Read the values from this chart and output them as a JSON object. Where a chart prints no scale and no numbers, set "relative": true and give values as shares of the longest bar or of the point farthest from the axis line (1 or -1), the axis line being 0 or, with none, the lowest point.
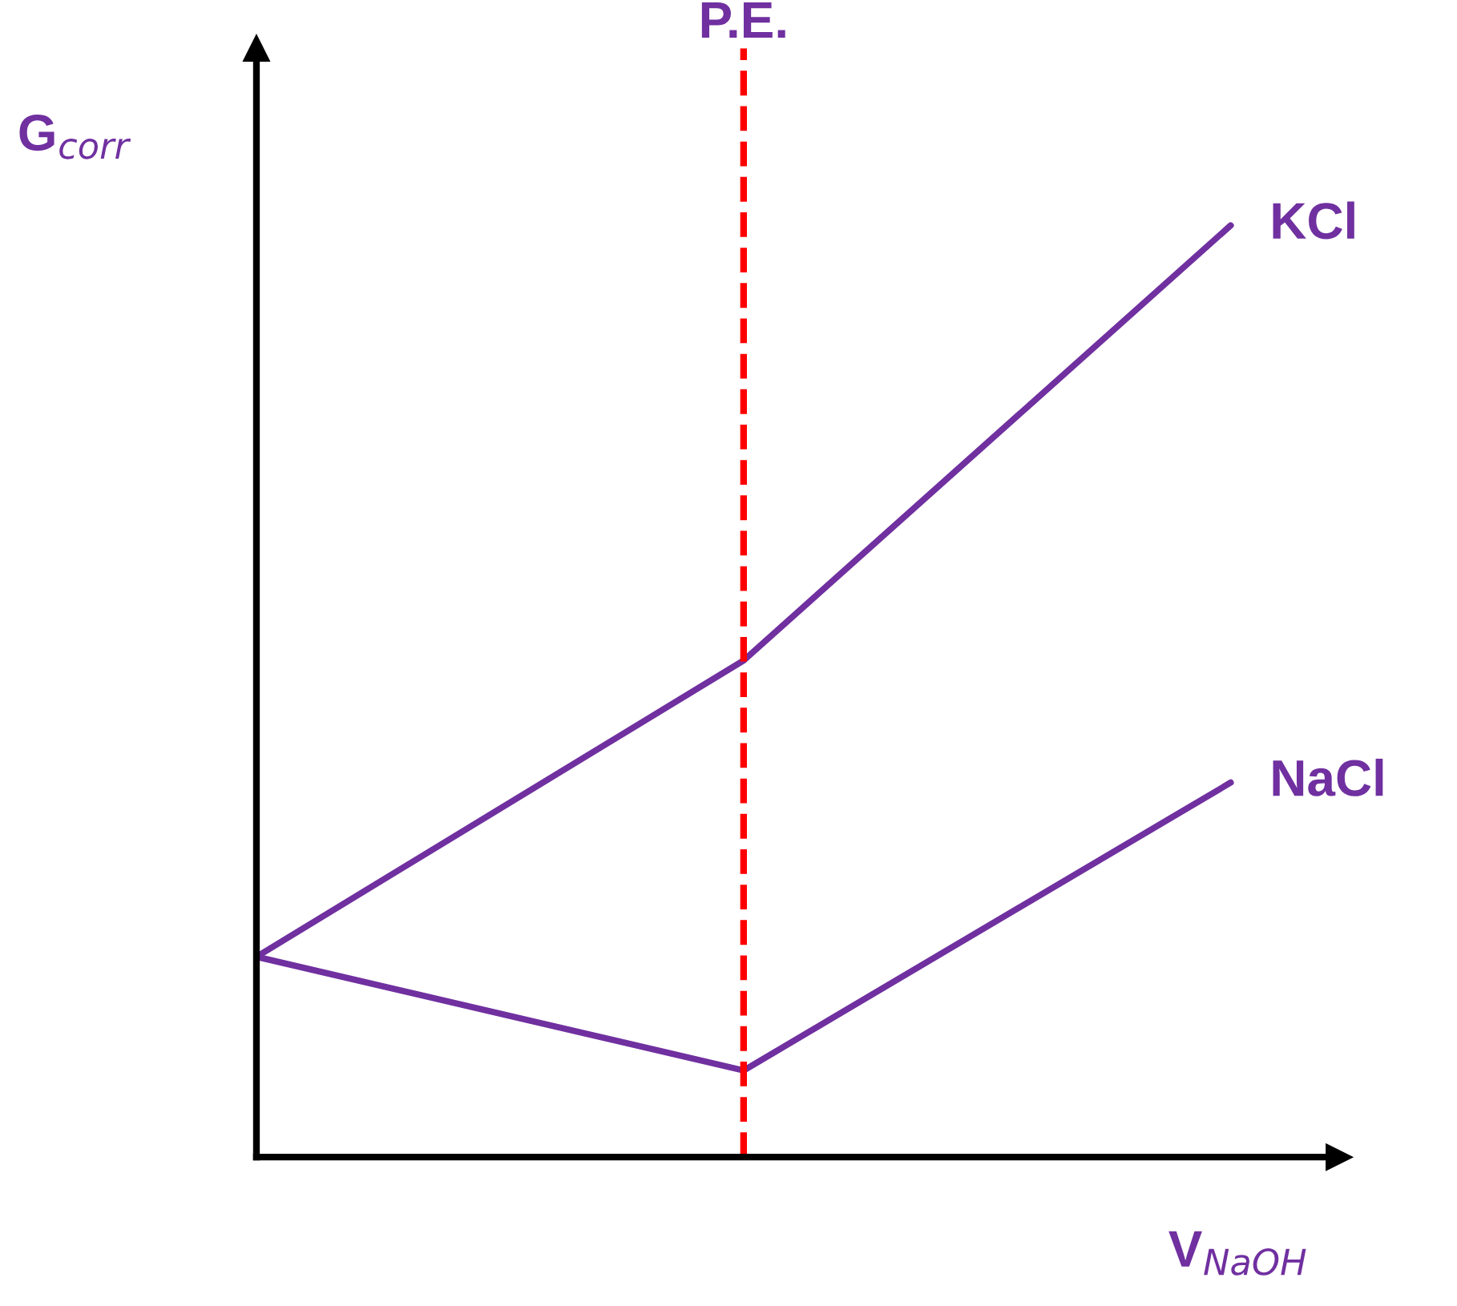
{
  "chart_data": {
    "type": "line",
    "relative": true,
    "xlabel": "V$_{NaOH}$",
    "ylabel": "G$_{corr}$",
    "categories": [
      null,
      null,
      null
    ],
    "legend": false,
    "marker": "none",
    "line_style": "solid",
    "series": [
      {
        "name": "KCl",
        "color": "#7030a0",
        "values": [
          0.215,
          0.533,
          1
        ]
      },
      {
        "name": "NaCl",
        "color": "#7030a0",
        "values": [
          0.215,
          0.093,
          0.402
        ]
      }
    ],
    "annotations": [
      "P.E."
    ]
  }
}
